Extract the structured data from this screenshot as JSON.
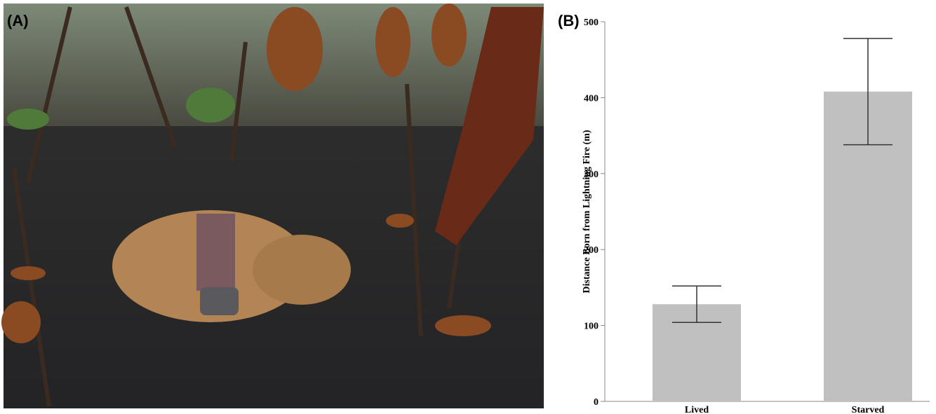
{
  "panel_labels": [
    "(A)",
    "(B)"
  ],
  "chart_data": {
    "type": "bar",
    "ylabel": "Distance Born from Lightning Fire (m)",
    "categories": [
      "Lived",
      "Starved"
    ],
    "values": [
      128,
      408
    ],
    "errors": [
      24,
      70
    ],
    "color": "#c0c0c0",
    "ylim": [
      0,
      500
    ],
    "yticks": [
      0,
      100,
      200,
      300,
      400,
      500
    ]
  }
}
